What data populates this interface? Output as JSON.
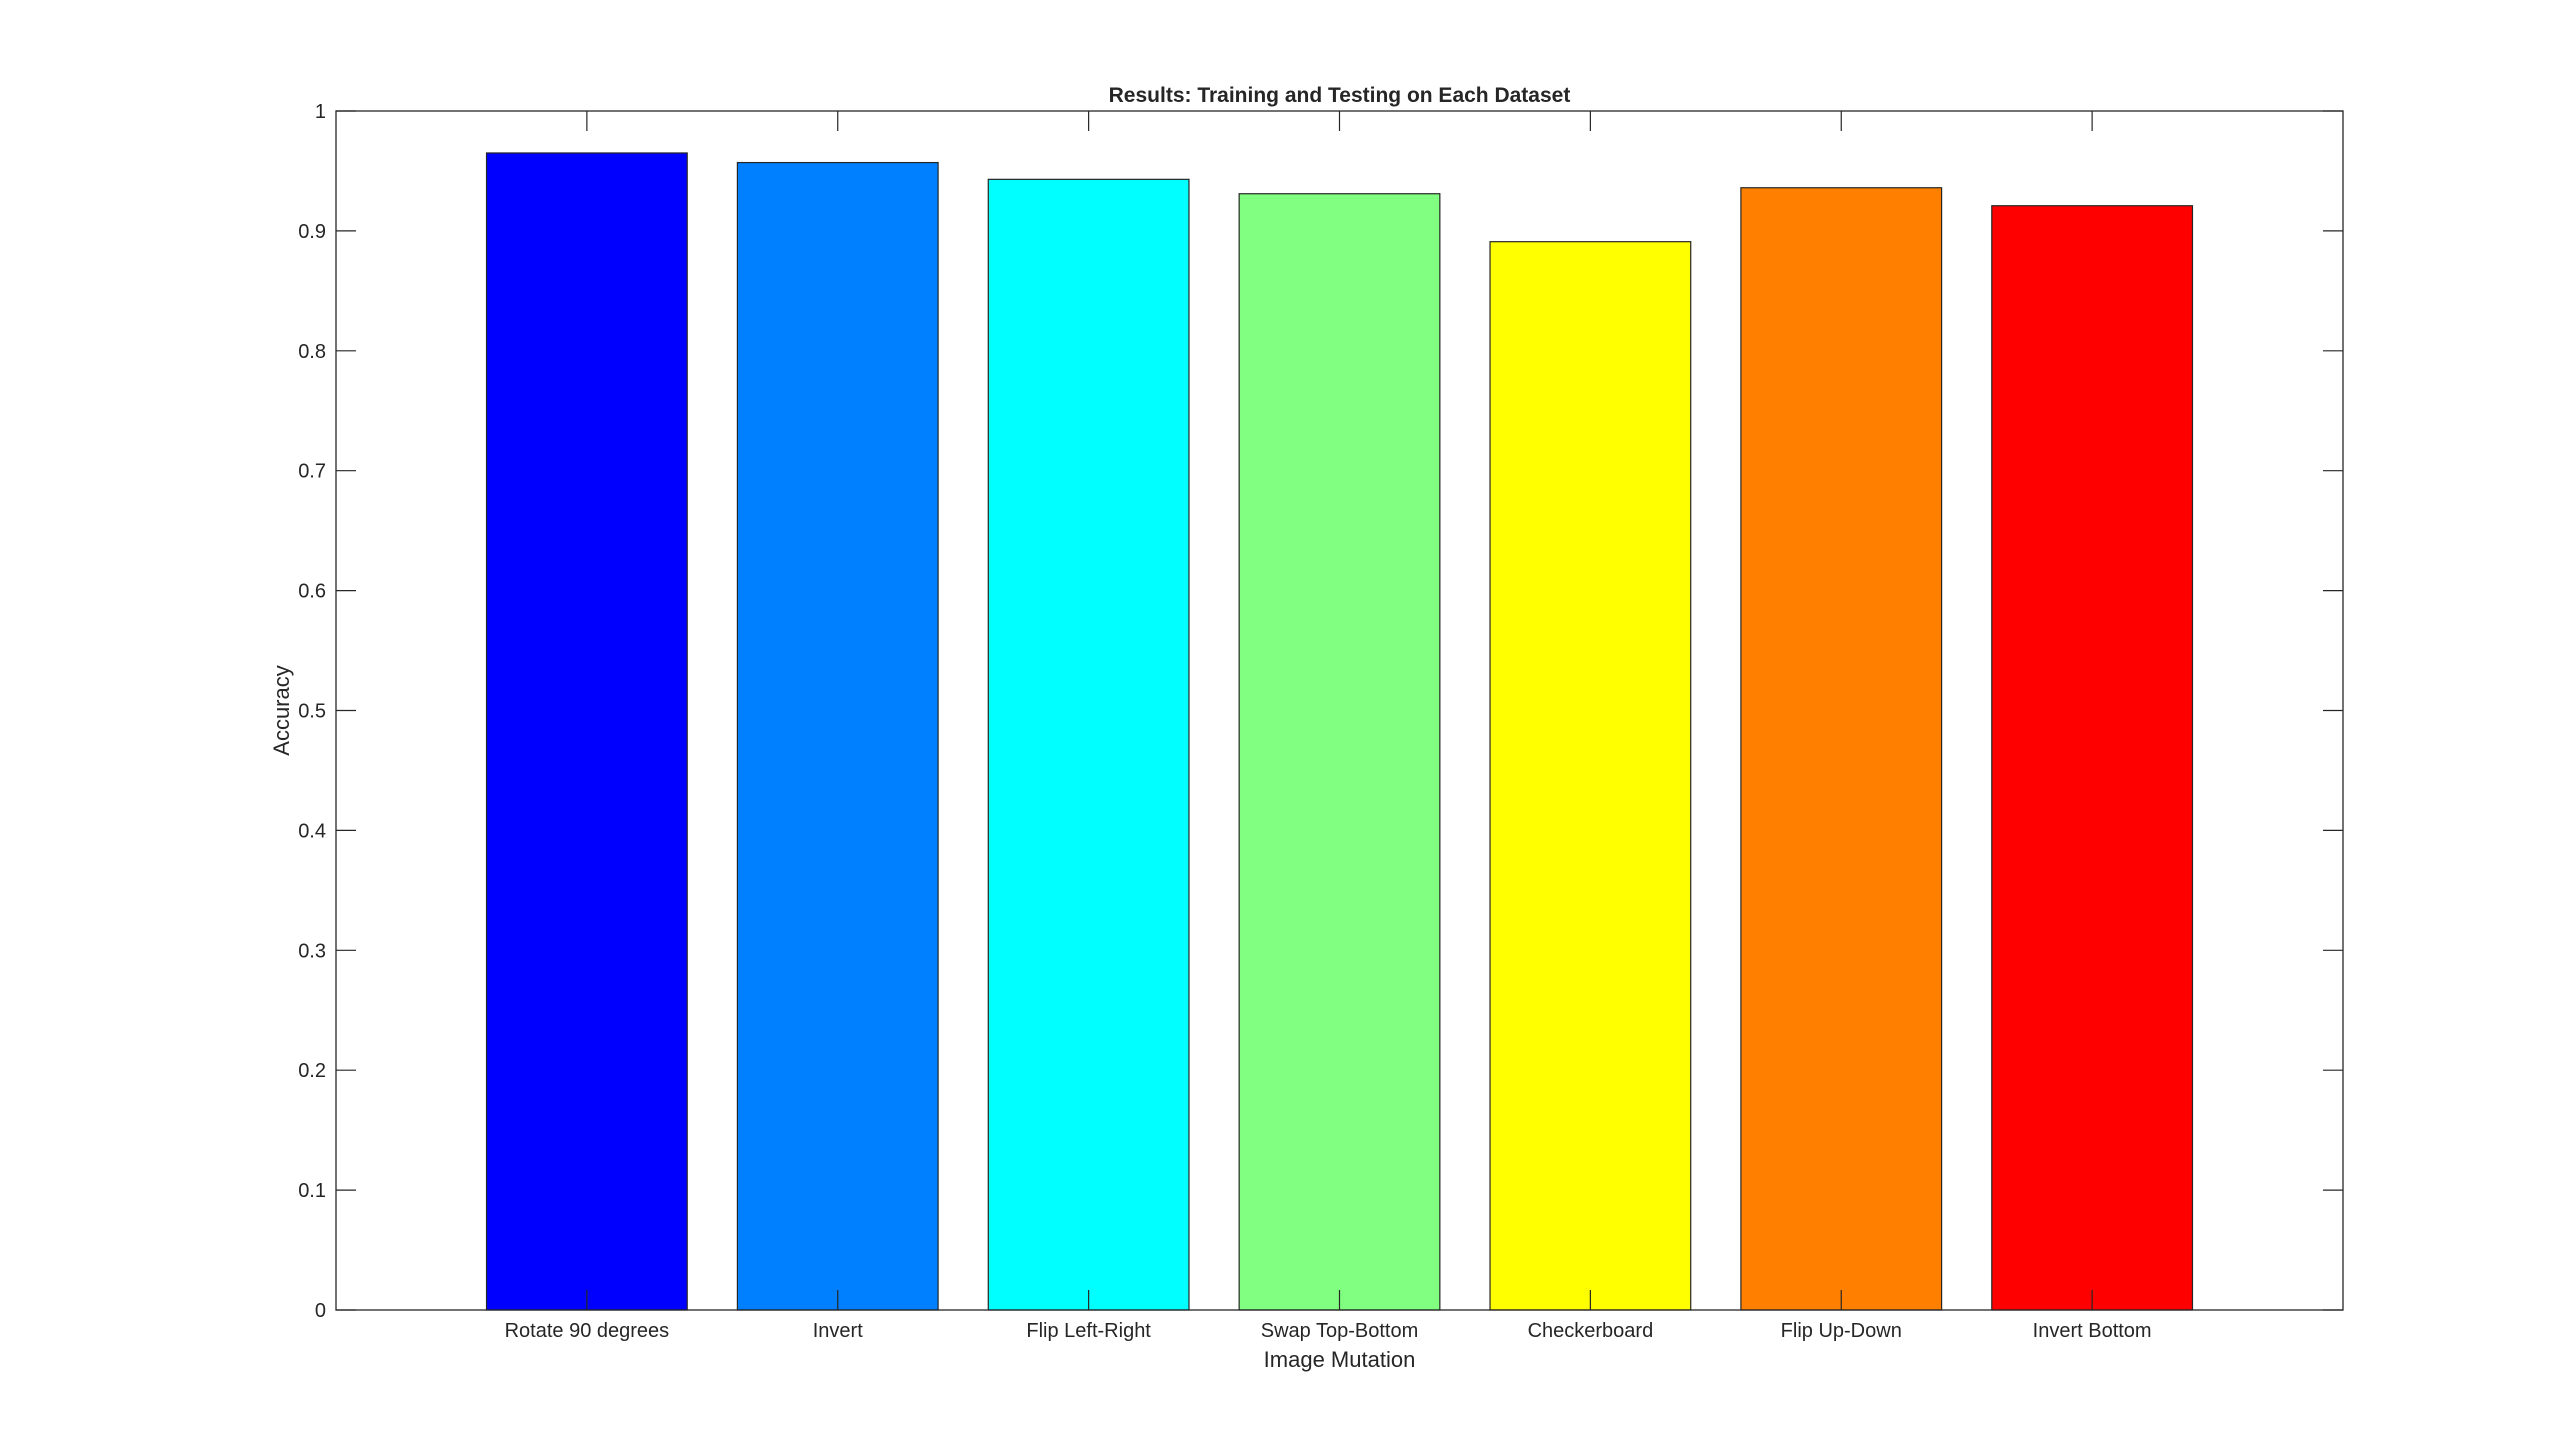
{
  "chart_data": {
    "type": "bar",
    "title": "Results: Training and Testing on Each Dataset",
    "xlabel": "Image Mutation",
    "ylabel": "Accuracy",
    "categories": [
      "Rotate 90 degrees",
      "Invert",
      "Flip Left-Right",
      "Swap Top-Bottom",
      "Checkerboard",
      "Flip Up-Down",
      "Invert Bottom"
    ],
    "values": [
      0.965,
      0.957,
      0.943,
      0.931,
      0.891,
      0.936,
      0.921
    ],
    "colors": [
      "#0000ff",
      "#0080ff",
      "#00ffff",
      "#80ff80",
      "#ffff00",
      "#ff8000",
      "#ff0000"
    ],
    "xlim": [
      0,
      8
    ],
    "ylim": [
      0,
      1
    ],
    "yticks": [
      "0",
      "0.1",
      "0.2",
      "0.3",
      "0.4",
      "0.5",
      "0.6",
      "0.7",
      "0.8",
      "0.9",
      "1"
    ],
    "grid": false,
    "legend": "none"
  }
}
